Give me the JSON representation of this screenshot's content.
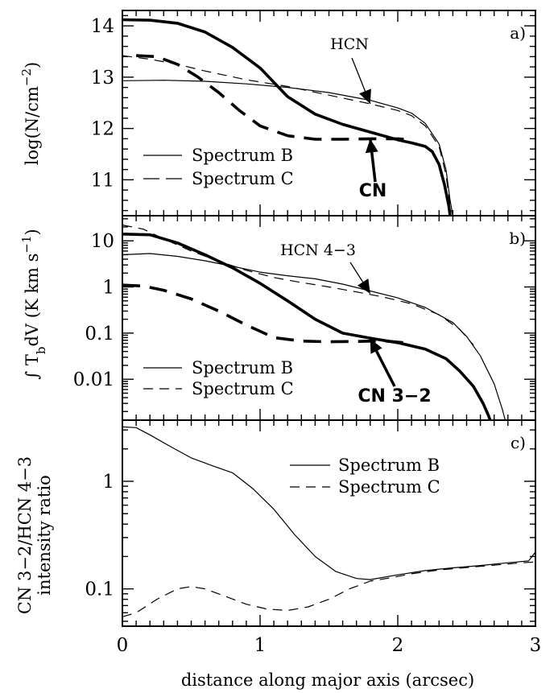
{
  "chart_data": [
    {
      "type": "line",
      "panel_label": "a)",
      "ylabel": "log(N/cm",
      "ylabel_sup": "−2",
      "ylabel_end": ")",
      "xlim": [
        0,
        3
      ],
      "ylim": [
        10.3,
        14.3
      ],
      "yscale": "linear",
      "yticks": [
        11,
        12,
        13,
        14
      ],
      "ytick_labels": [
        "11",
        "12",
        "13",
        "14"
      ],
      "legend": [
        {
          "label": "Spectrum B",
          "style": "solid"
        },
        {
          "label": "Spectrum C",
          "style": "dashed"
        }
      ],
      "annotations": [
        {
          "text": "HCN",
          "weight": "normal",
          "target": [
            1.8,
            12.48
          ]
        },
        {
          "text": "CN",
          "weight": "bold",
          "target": [
            1.8,
            11.8
          ]
        }
      ],
      "series": [
        {
          "name": "HCN",
          "spectrum": "B",
          "style": "solid",
          "width": 1,
          "points": [
            [
              0,
              12.93
            ],
            [
              0.3,
              12.94
            ],
            [
              0.6,
              12.92
            ],
            [
              0.9,
              12.87
            ],
            [
              1.2,
              12.8
            ],
            [
              1.5,
              12.7
            ],
            [
              1.8,
              12.55
            ],
            [
              2.0,
              12.4
            ],
            [
              2.1,
              12.3
            ],
            [
              2.2,
              12.1
            ],
            [
              2.3,
              11.7
            ],
            [
              2.35,
              11.2
            ],
            [
              2.38,
              10.6
            ],
            [
              2.4,
              10.3
            ]
          ]
        },
        {
          "name": "HCN",
          "spectrum": "C",
          "style": "dashed",
          "width": 1,
          "points": [
            [
              0,
              13.42
            ],
            [
              0.2,
              13.35
            ],
            [
              0.4,
              13.25
            ],
            [
              0.6,
              13.12
            ],
            [
              0.9,
              12.95
            ],
            [
              1.2,
              12.82
            ],
            [
              1.5,
              12.65
            ],
            [
              1.8,
              12.48
            ],
            [
              2.0,
              12.35
            ],
            [
              2.1,
              12.25
            ],
            [
              2.2,
              12.05
            ],
            [
              2.3,
              11.65
            ],
            [
              2.35,
              11.1
            ],
            [
              2.38,
              10.5
            ],
            [
              2.4,
              10.3
            ]
          ]
        },
        {
          "name": "CN",
          "spectrum": "B",
          "style": "solid",
          "width": 3,
          "points": [
            [
              0,
              14.12
            ],
            [
              0.2,
              14.11
            ],
            [
              0.4,
              14.05
            ],
            [
              0.6,
              13.88
            ],
            [
              0.8,
              13.58
            ],
            [
              1.0,
              13.18
            ],
            [
              1.2,
              12.62
            ],
            [
              1.4,
              12.28
            ],
            [
              1.6,
              12.08
            ],
            [
              1.8,
              11.93
            ],
            [
              2.0,
              11.78
            ],
            [
              2.1,
              11.72
            ],
            [
              2.2,
              11.65
            ],
            [
              2.25,
              11.55
            ],
            [
              2.3,
              11.3
            ],
            [
              2.34,
              10.9
            ],
            [
              2.37,
              10.5
            ],
            [
              2.38,
              10.3
            ]
          ]
        },
        {
          "name": "CN",
          "spectrum": "C",
          "style": "dashed",
          "width": 3,
          "points": [
            [
              0.1,
              13.42
            ],
            [
              0.25,
              13.4
            ],
            [
              0.4,
              13.25
            ],
            [
              0.55,
              13.0
            ],
            [
              0.7,
              12.7
            ],
            [
              0.85,
              12.35
            ],
            [
              1.0,
              12.05
            ],
            [
              1.2,
              11.86
            ],
            [
              1.4,
              11.79
            ],
            [
              1.6,
              11.79
            ],
            [
              1.8,
              11.8
            ],
            [
              2.0,
              11.8
            ],
            [
              2.1,
              11.78
            ]
          ]
        }
      ]
    },
    {
      "type": "line",
      "panel_label": "b)",
      "ylabel_prefix": "∫ T",
      "ylabel_sub": "b",
      "ylabel_mid": "dV (K km s",
      "ylabel_sup": "−1",
      "ylabel_end": ")",
      "xlim": [
        0,
        3
      ],
      "ylim": [
        0.0013,
        35
      ],
      "yscale": "log",
      "yticks": [
        0.01,
        0.1,
        1,
        10
      ],
      "ytick_labels": [
        "0.01",
        "0.1",
        "1",
        "10"
      ],
      "legend": [
        {
          "label": "Spectrum B",
          "style": "solid"
        },
        {
          "label": "Spectrum C",
          "style": "dashed"
        }
      ],
      "annotations": [
        {
          "text": "HCN 4−3",
          "weight": "normal",
          "target": [
            1.8,
            0.72
          ]
        },
        {
          "text": "CN 3−2",
          "weight": "bold",
          "target": [
            1.8,
            0.075
          ]
        }
      ],
      "series": [
        {
          "name": "HCN 4-3",
          "spectrum": "B",
          "style": "solid",
          "width": 1,
          "points": [
            [
              0,
              5.0
            ],
            [
              0.2,
              5.3
            ],
            [
              0.4,
              4.6
            ],
            [
              0.6,
              3.7
            ],
            [
              0.8,
              2.8
            ],
            [
              1.0,
              2.1
            ],
            [
              1.2,
              1.75
            ],
            [
              1.4,
              1.5
            ],
            [
              1.6,
              1.15
            ],
            [
              1.8,
              0.82
            ],
            [
              2.0,
              0.58
            ],
            [
              2.2,
              0.36
            ],
            [
              2.4,
              0.17
            ],
            [
              2.5,
              0.085
            ],
            [
              2.6,
              0.032
            ],
            [
              2.7,
              0.008
            ],
            [
              2.76,
              0.0022
            ],
            [
              2.78,
              0.0013
            ]
          ]
        },
        {
          "name": "HCN 4-3",
          "spectrum": "C",
          "style": "dashed",
          "width": 1,
          "points": [
            [
              0,
              22
            ],
            [
              0.15,
              18
            ],
            [
              0.3,
              11
            ],
            [
              0.5,
              6.0
            ],
            [
              0.7,
              3.6
            ],
            [
              0.9,
              2.3
            ],
            [
              1.1,
              1.6
            ],
            [
              1.3,
              1.25
            ],
            [
              1.5,
              1.0
            ],
            [
              1.7,
              0.78
            ],
            [
              1.9,
              0.6
            ],
            [
              2.1,
              0.43
            ],
            [
              2.3,
              0.25
            ],
            [
              2.45,
              0.12
            ],
            [
              2.55,
              0.055
            ]
          ]
        },
        {
          "name": "CN 3-2",
          "spectrum": "B",
          "style": "solid",
          "width": 3,
          "points": [
            [
              0,
              14
            ],
            [
              0.2,
              13.5
            ],
            [
              0.4,
              9.0
            ],
            [
              0.6,
              5.0
            ],
            [
              0.8,
              2.6
            ],
            [
              1.0,
              1.2
            ],
            [
              1.2,
              0.5
            ],
            [
              1.4,
              0.2
            ],
            [
              1.6,
              0.1
            ],
            [
              1.8,
              0.078
            ],
            [
              2.0,
              0.062
            ],
            [
              2.2,
              0.045
            ],
            [
              2.35,
              0.028
            ],
            [
              2.45,
              0.015
            ],
            [
              2.55,
              0.007
            ],
            [
              2.62,
              0.003
            ],
            [
              2.66,
              0.0016
            ],
            [
              2.67,
              0.0013
            ]
          ]
        },
        {
          "name": "CN 3-2",
          "spectrum": "C",
          "style": "dashed",
          "width": 3,
          "points": [
            [
              0,
              1.1
            ],
            [
              0.15,
              1.05
            ],
            [
              0.3,
              0.85
            ],
            [
              0.5,
              0.55
            ],
            [
              0.7,
              0.3
            ],
            [
              0.9,
              0.15
            ],
            [
              1.1,
              0.08
            ],
            [
              1.3,
              0.067
            ],
            [
              1.5,
              0.065
            ],
            [
              1.7,
              0.066
            ],
            [
              1.9,
              0.068
            ],
            [
              2.1,
              0.06
            ]
          ]
        }
      ]
    },
    {
      "type": "line",
      "panel_label": "c)",
      "ylabel_line1": "CN 3−2/HCN 4−3",
      "ylabel_line2": "intensity ratio",
      "xlabel": "distance along major axis (arcsec)",
      "xlim": [
        0,
        3
      ],
      "ylim": [
        0.045,
        3.7
      ],
      "yscale": "log",
      "yticks": [
        0.1,
        1
      ],
      "ytick_labels": [
        "0.1",
        "1"
      ],
      "xticks": [
        0,
        1,
        2,
        3
      ],
      "xtick_labels": [
        "0",
        "1",
        "2",
        "3"
      ],
      "legend": [
        {
          "label": "Spectrum B",
          "style": "solid"
        },
        {
          "label": "Spectrum C",
          "style": "dashed"
        }
      ],
      "series": [
        {
          "name": "ratio",
          "spectrum": "B",
          "style": "solid",
          "width": 1,
          "points": [
            [
              0,
              3.2
            ],
            [
              0.1,
              3.15
            ],
            [
              0.2,
              2.7
            ],
            [
              0.35,
              2.1
            ],
            [
              0.5,
              1.65
            ],
            [
              0.65,
              1.4
            ],
            [
              0.8,
              1.2
            ],
            [
              0.95,
              0.85
            ],
            [
              1.1,
              0.55
            ],
            [
              1.25,
              0.32
            ],
            [
              1.4,
              0.2
            ],
            [
              1.55,
              0.145
            ],
            [
              1.7,
              0.125
            ],
            [
              1.8,
              0.122
            ],
            [
              2.0,
              0.135
            ],
            [
              2.2,
              0.148
            ],
            [
              2.4,
              0.157
            ],
            [
              2.6,
              0.165
            ],
            [
              2.8,
              0.175
            ],
            [
              2.95,
              0.182
            ],
            [
              3.0,
              0.22
            ]
          ]
        },
        {
          "name": "ratio",
          "spectrum": "C",
          "style": "dashed",
          "width": 1,
          "points": [
            [
              0,
              0.055
            ],
            [
              0.1,
              0.06
            ],
            [
              0.25,
              0.08
            ],
            [
              0.4,
              0.1
            ],
            [
              0.5,
              0.105
            ],
            [
              0.6,
              0.1
            ],
            [
              0.75,
              0.085
            ],
            [
              0.9,
              0.072
            ],
            [
              1.05,
              0.065
            ],
            [
              1.2,
              0.063
            ],
            [
              1.35,
              0.068
            ],
            [
              1.5,
              0.08
            ],
            [
              1.65,
              0.1
            ],
            [
              1.8,
              0.118
            ],
            [
              1.95,
              0.127
            ],
            [
              2.1,
              0.138
            ],
            [
              2.3,
              0.15
            ],
            [
              2.5,
              0.158
            ],
            [
              2.7,
              0.166
            ],
            [
              2.9,
              0.175
            ],
            [
              3.0,
              0.178
            ]
          ]
        }
      ]
    }
  ]
}
